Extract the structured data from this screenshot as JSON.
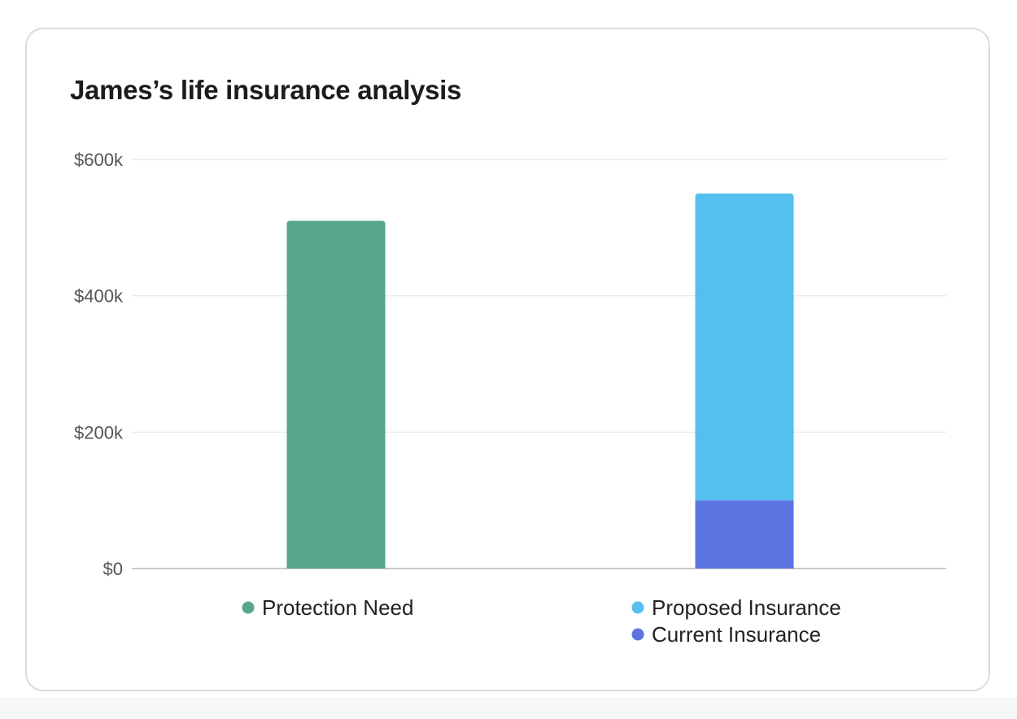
{
  "title": "James’s life insurance analysis",
  "chart_data": {
    "type": "bar",
    "stacked": true,
    "title": "James’s life insurance analysis",
    "categories": [
      "",
      ""
    ],
    "ylim": [
      0,
      600000
    ],
    "yticks": [
      {
        "value": 0,
        "label": "$0"
      },
      {
        "value": 200000,
        "label": "$200k"
      },
      {
        "value": 400000,
        "label": "$400k"
      },
      {
        "value": 600000,
        "label": "$600k"
      }
    ],
    "grid": true,
    "legend_position": "below each bar",
    "series": [
      {
        "name": "Protection Need",
        "color": "#57a58a",
        "values": [
          510000,
          0
        ]
      },
      {
        "name": "Current Insurance",
        "color": "#5a74e0",
        "values": [
          0,
          100000
        ]
      },
      {
        "name": "Proposed Insurance",
        "color": "#55bff0",
        "values": [
          0,
          450000
        ]
      }
    ],
    "legend_groups": [
      [
        "Protection Need"
      ],
      [
        "Proposed Insurance",
        "Current Insurance"
      ]
    ]
  }
}
